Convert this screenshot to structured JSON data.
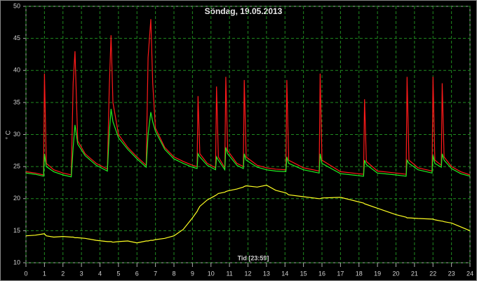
{
  "chart_data": {
    "type": "line",
    "title": "Söndag, 19.05.2013",
    "xlabel": "Tid [23:59]",
    "ylabel": "° C",
    "x": [
      0,
      0.5,
      0.95,
      1.0,
      1.1,
      1.5,
      2.0,
      2.45,
      2.55,
      2.65,
      2.8,
      3.2,
      3.8,
      4.4,
      4.5,
      4.6,
      4.7,
      5.0,
      5.5,
      6.0,
      6.5,
      6.6,
      6.75,
      6.85,
      7.0,
      7.5,
      8.0,
      8.5,
      9.0,
      9.25,
      9.3,
      9.4,
      9.8,
      10.25,
      10.3,
      10.4,
      10.75,
      10.8,
      10.9,
      11.4,
      11.75,
      11.8,
      11.9,
      12.5,
      13.0,
      13.5,
      14.05,
      14.1,
      14.2,
      15.0,
      15.85,
      15.9,
      16.0,
      17.0,
      18.25,
      18.3,
      18.4,
      19.0,
      20.0,
      20.55,
      20.6,
      20.7,
      21.2,
      21.95,
      22.0,
      22.1,
      22.45,
      22.5,
      22.6,
      23.0,
      23.5,
      24.0
    ],
    "series": [
      {
        "color": "#ff1a1a",
        "values": [
          24.2,
          24.0,
          23.7,
          39.5,
          25.5,
          24.5,
          24.0,
          23.7,
          38,
          43,
          29,
          27,
          25.5,
          24.6,
          37,
          45.5,
          35,
          30,
          28,
          26.5,
          25.2,
          42,
          48,
          38,
          31,
          28,
          26.5,
          25.8,
          25.2,
          25,
          36,
          27,
          25.5,
          24.8,
          37.5,
          26.5,
          24.8,
          39,
          27.5,
          25.5,
          25,
          38.5,
          26.5,
          25.2,
          24.8,
          24.6,
          24.5,
          38.5,
          26,
          24.8,
          24.3,
          39.5,
          26,
          24.2,
          23.8,
          35.5,
          25.8,
          24.3,
          24,
          23.8,
          39,
          26,
          24.8,
          24.3,
          39,
          26,
          25.2,
          38,
          26.5,
          25,
          24.2,
          23.7
        ]
      },
      {
        "color": "#22ee22",
        "values": [
          24,
          23.8,
          23.5,
          27,
          25,
          24.2,
          23.7,
          23.4,
          28,
          31.5,
          28.5,
          26.7,
          25.2,
          24.3,
          30,
          34,
          32,
          29.5,
          27.7,
          26.2,
          24.9,
          30,
          33.5,
          32,
          30.5,
          27.7,
          26.2,
          25.5,
          24.9,
          24.7,
          27,
          26.5,
          25.2,
          24.5,
          26.5,
          26,
          24.5,
          28,
          27,
          25.2,
          24.7,
          27,
          26,
          24.9,
          24.5,
          24.3,
          24.2,
          26.5,
          25.5,
          24.5,
          24,
          27,
          25.5,
          23.9,
          23.5,
          26,
          25.3,
          24,
          23.7,
          23.5,
          26,
          25.5,
          24.5,
          24,
          26.8,
          25.5,
          24.9,
          27,
          26,
          24.7,
          23.9,
          23.5
        ]
      },
      {
        "color": "#ffff22",
        "values": [
          14.2,
          14.3,
          14.5,
          14.5,
          14.2,
          14.0,
          14.1,
          14.0,
          14.0,
          13.9,
          13.9,
          13.8,
          13.5,
          13.3,
          13.3,
          13.3,
          13.2,
          13.3,
          13.4,
          13.1,
          13.4,
          13.4,
          13.5,
          13.5,
          13.6,
          13.8,
          14.2,
          15.2,
          17,
          18,
          18.3,
          18.8,
          19.8,
          20.5,
          20.6,
          20.8,
          21,
          21.1,
          21.2,
          21.5,
          21.8,
          21.9,
          22,
          21.8,
          22.1,
          21.3,
          20.9,
          20.8,
          20.6,
          20.3,
          20.0,
          20.0,
          20.1,
          20.2,
          19.3,
          19.2,
          19.1,
          18.5,
          17.5,
          17.1,
          17.0,
          17.0,
          16.9,
          16.8,
          16.8,
          16.7,
          16.5,
          16.5,
          16.4,
          16.2,
          15.6,
          15.0
        ]
      }
    ],
    "xlim": [
      0,
      24
    ],
    "xticks": [
      0,
      1,
      2,
      3,
      4,
      5,
      6,
      7,
      8,
      9,
      10,
      11,
      12,
      13,
      14,
      15,
      16,
      17,
      18,
      19,
      20,
      21,
      22,
      23,
      24
    ],
    "ylim": [
      10,
      50
    ],
    "yticks": [
      10,
      15,
      20,
      25,
      30,
      35,
      40,
      45,
      50
    ],
    "grid": true,
    "grid_color": "#1f8a1f"
  }
}
